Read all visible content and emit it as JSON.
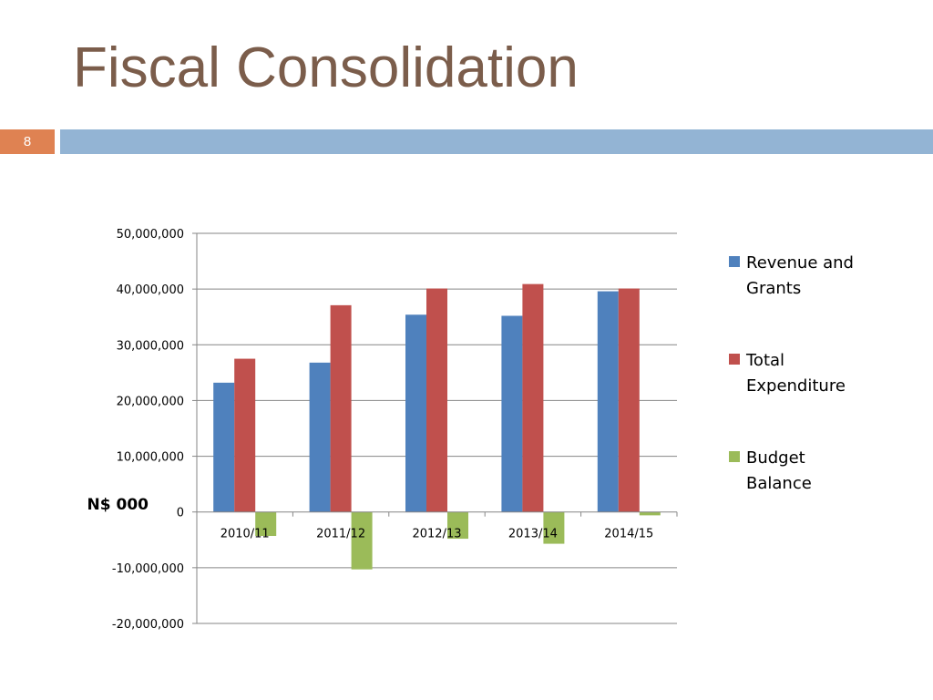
{
  "slide": {
    "title": "Fiscal Consolidation",
    "number": "8"
  },
  "colors": {
    "title": "#7b5d4b",
    "number_box": "#df8252",
    "title_bar": "#93b4d4"
  },
  "chart_data": {
    "type": "bar",
    "title": "",
    "xlabel": "",
    "ylabel": "N$ 000",
    "ylim": [
      -20000000,
      50000000
    ],
    "ytick_values": [
      -20000000,
      -10000000,
      0,
      10000000,
      20000000,
      30000000,
      40000000,
      50000000
    ],
    "ytick_labels": [
      "-20,000,000",
      "-10,000,000",
      "0",
      "10,000,000",
      "20,000,000",
      "30,000,000",
      "40,000,000",
      "50,000,000"
    ],
    "categories": [
      "2010/11",
      "2011/12",
      "2012/13",
      "2013/14",
      "2014/15"
    ],
    "grid": true,
    "legend_position": "right",
    "series": [
      {
        "name": "Revenue and Grants",
        "color": "#4f81bd",
        "values": [
          23200000,
          26800000,
          35400000,
          35200000,
          39600000
        ]
      },
      {
        "name": "Total Expenditure",
        "color": "#c0504d",
        "values": [
          27500000,
          37100000,
          40100000,
          40900000,
          40100000
        ]
      },
      {
        "name": "Budget Balance",
        "color": "#9bbb59",
        "values": [
          -4300000,
          -10300000,
          -4800000,
          -5700000,
          -600000
        ]
      }
    ],
    "legend_lines": [
      [
        "Revenue and",
        "Grants"
      ],
      [
        "Total",
        "Expenditure"
      ],
      [
        "Budget",
        "Balance"
      ]
    ]
  }
}
